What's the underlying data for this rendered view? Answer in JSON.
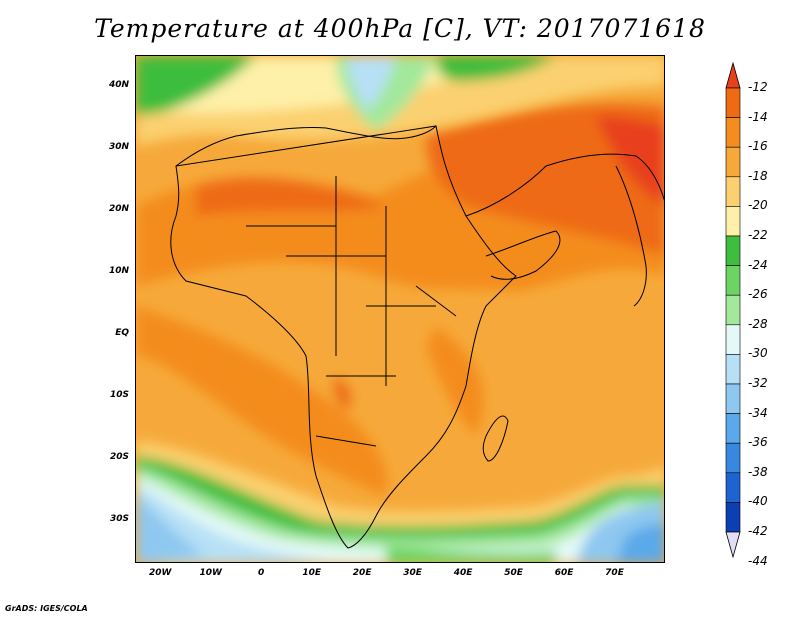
{
  "title": "Temperature at 400hPa [C], VT: 2017071618",
  "credit": "GrADS: IGES/COLA",
  "map": {
    "variable": "Temperature",
    "level": "400hPa",
    "units": "C",
    "valid_time": "2017071618",
    "lon_range": [
      -25,
      80
    ],
    "lat_range": [
      -37,
      45
    ],
    "lat_labels": [
      "40N",
      "30N",
      "20N",
      "10N",
      "EQ",
      "10S",
      "20S",
      "30S"
    ],
    "lat_values": [
      40,
      30,
      20,
      10,
      0,
      -10,
      -20,
      -30
    ],
    "lon_labels": [
      "20W",
      "10W",
      "0",
      "10E",
      "20E",
      "30E",
      "40E",
      "50E",
      "60E",
      "70E"
    ],
    "lon_values": [
      -20,
      -10,
      0,
      10,
      20,
      30,
      40,
      50,
      60,
      70
    ]
  },
  "colorbar": {
    "labels": [
      "-12",
      "-14",
      "-16",
      "-18",
      "-20",
      "-22",
      "-24",
      "-26",
      "-28",
      "-30",
      "-32",
      "-34",
      "-36",
      "-38",
      "-40",
      "-42",
      "-44"
    ],
    "values": [
      -12,
      -14,
      -16,
      -18,
      -20,
      -22,
      -24,
      -26,
      -28,
      -30,
      -32,
      -34,
      -36,
      -38,
      -40,
      -42,
      -44
    ],
    "colors": [
      "#e8401a",
      "#ee6b13",
      "#f48c1f",
      "#f6a93a",
      "#fbd070",
      "#fef0a8",
      "#3ebd3e",
      "#6dd464",
      "#a3e89b",
      "#e4f9f7",
      "#b7e0f6",
      "#8ec7f0",
      "#5aa9ea",
      "#3789e0",
      "#1e64d1",
      "#0c3fb3",
      "#0a1e7e"
    ],
    "top_arrow_color": "#e8401a",
    "bottom_arrow_color": "#e5dcf5"
  }
}
